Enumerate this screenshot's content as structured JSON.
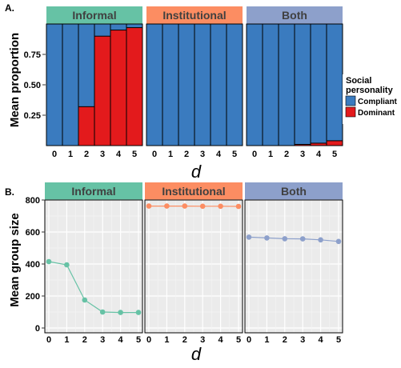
{
  "chart_data": [
    {
      "type": "bar",
      "panel_label": "A.",
      "ylabel": "Mean proportion",
      "xlabel": "d",
      "categories": [
        "0",
        "1",
        "2",
        "3",
        "4",
        "5"
      ],
      "yticks": [
        "0.25",
        "0.50",
        "0.75"
      ],
      "facets": [
        {
          "name": "Informal",
          "color": "#66c2a5",
          "dominant": [
            0,
            0,
            0.32,
            0.9,
            0.95,
            0.97
          ]
        },
        {
          "name": "Institutional",
          "color": "#fc8d62",
          "dominant": [
            0,
            0,
            0,
            0,
            0,
            0
          ]
        },
        {
          "name": "Both",
          "color": "#8da0cb",
          "dominant": [
            0,
            0,
            0,
            0.01,
            0.02,
            0.04
          ]
        }
      ],
      "legend": {
        "title": "Social personality",
        "position": "right",
        "items": [
          {
            "label": "Compliant",
            "color": "#3a7bbf"
          },
          {
            "label": "Dominant",
            "color": "#e31a1c"
          }
        ]
      },
      "ylim": [
        0,
        1
      ]
    },
    {
      "type": "line",
      "panel_label": "B.",
      "ylabel": "Mean group size",
      "xlabel": "d",
      "categories": [
        "0",
        "1",
        "2",
        "3",
        "4",
        "5"
      ],
      "yticks": [
        "0",
        "200",
        "400",
        "600",
        "800"
      ],
      "ylim": [
        -30,
        800
      ],
      "facets": [
        {
          "name": "Informal",
          "color": "#66c2a5",
          "values": [
            415,
            395,
            175,
            100,
            97,
            97
          ]
        },
        {
          "name": "Institutional",
          "color": "#fc8d62",
          "values": [
            762,
            762,
            762,
            761,
            761,
            760
          ]
        },
        {
          "name": "Both",
          "color": "#8da0cb",
          "values": [
            568,
            563,
            558,
            557,
            551,
            541
          ]
        }
      ]
    }
  ]
}
